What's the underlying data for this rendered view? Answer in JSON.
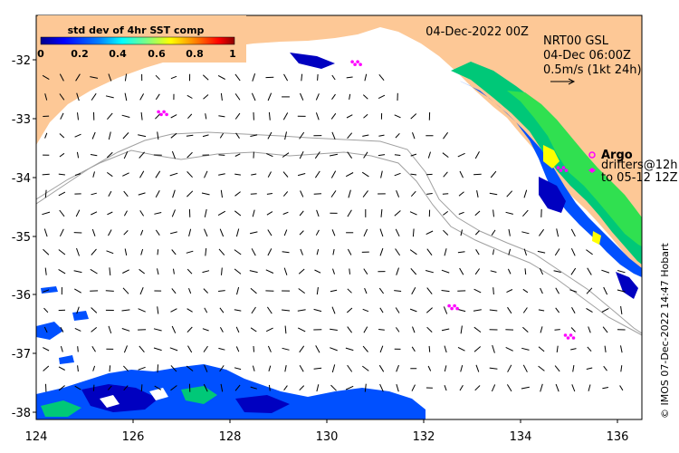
{
  "title_date": "04-Dec-2022 00Z",
  "colorbar": {
    "title": "std dev of 4hr SST comp",
    "ticks": [
      "0",
      "0.2",
      "0.4",
      "0.6",
      "0.8",
      "1"
    ],
    "colors": [
      "#00008b",
      "#0000ff",
      "#0080ff",
      "#00ffff",
      "#80ff80",
      "#ffff00",
      "#ff8000",
      "#ff0000",
      "#8b0000"
    ]
  },
  "current_legend": {
    "line1": "NRT00 GSL",
    "line2": "04-Dec 06:00Z",
    "line3": "0.5m/s (1kt 24h)"
  },
  "argo_legend": {
    "argo": "Argo",
    "drifters": "drifters@12h",
    "to": "to 05-12 12Z"
  },
  "credit": "© IMOS 07-Dec-2022 14:47 Hobart",
  "axes": {
    "x_ticks": [
      "124",
      "126",
      "128",
      "130",
      "132",
      "134",
      "136"
    ],
    "y_ticks": [
      "-32",
      "-33",
      "-34",
      "-35",
      "-36",
      "-37",
      "-38"
    ]
  },
  "colors": {
    "land": "#fdc896",
    "ocean": "#ffffff",
    "magenta": "#ff00ff",
    "contour": "#a0a0a0"
  },
  "magenta_markers": [
    {
      "lon": 130.6,
      "lat": -32.05
    },
    {
      "lon": 126.6,
      "lat": -32.9
    },
    {
      "lon": 132.6,
      "lat": -36.2
    },
    {
      "lon": 135.0,
      "lat": -36.7
    },
    {
      "lon": 134.85,
      "lat": -33.85
    }
  ]
}
